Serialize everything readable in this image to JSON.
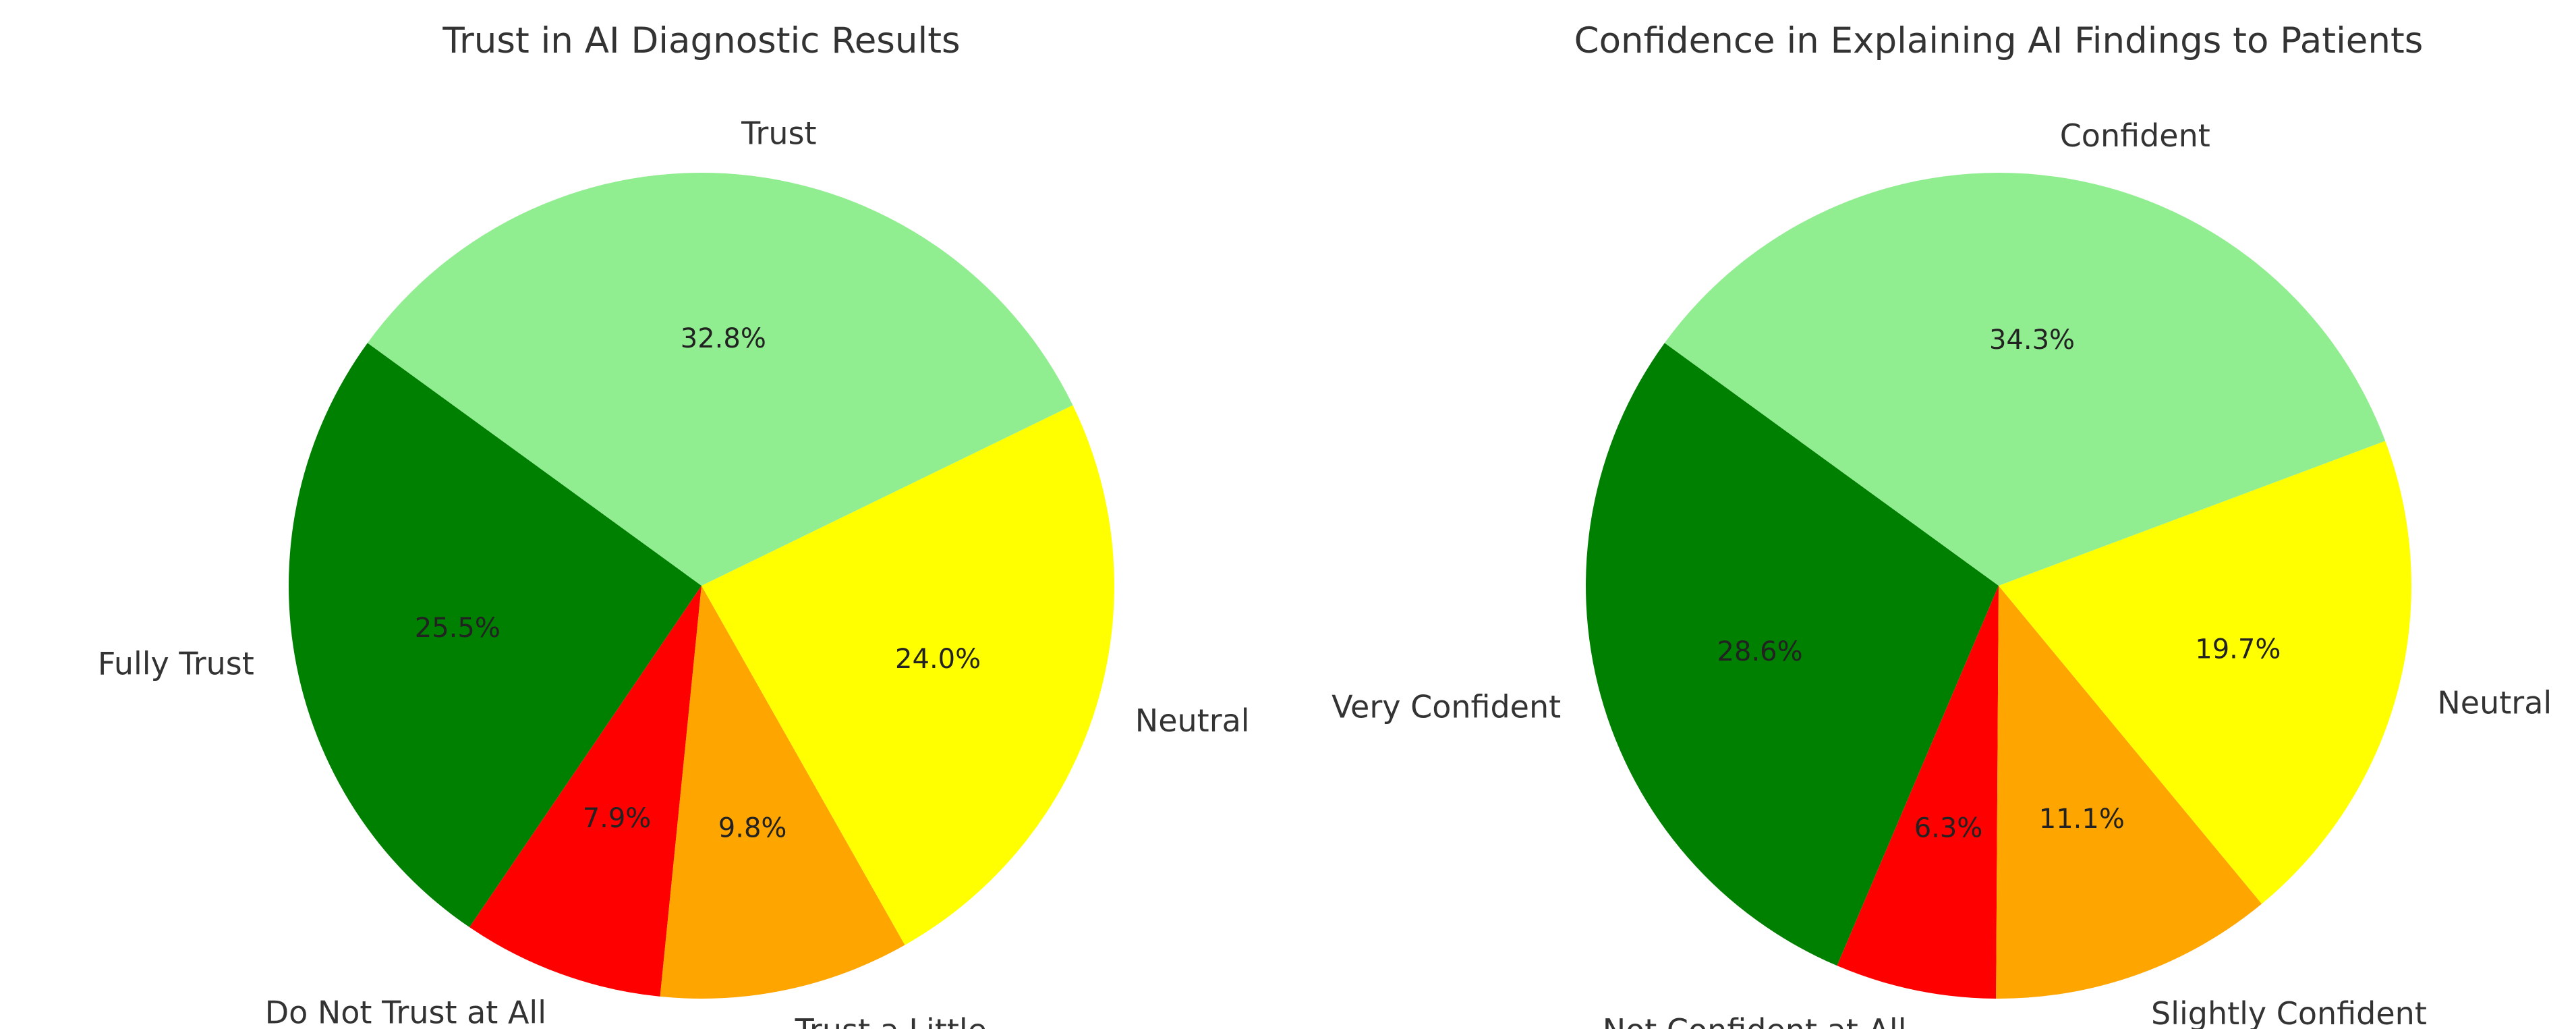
{
  "chart_data": [
    {
      "type": "pie",
      "title": "Trust in AI Diagnostic Results",
      "start_angle_deg": 144,
      "direction": "counterclockwise",
      "slices": [
        {
          "label": "Fully Trust",
          "value": 25.5,
          "pct_label": "25.5%",
          "color": "#008000"
        },
        {
          "label": "Do Not Trust at All",
          "value": 7.9,
          "pct_label": "7.9%",
          "color": "#ff0000"
        },
        {
          "label": "Trust a Little",
          "value": 9.8,
          "pct_label": "9.8%",
          "color": "#ffa500"
        },
        {
          "label": "Neutral",
          "value": 24.0,
          "pct_label": "24.0%",
          "color": "#ffff00"
        },
        {
          "label": "Trust",
          "value": 32.8,
          "pct_label": "32.8%",
          "color": "#90ee90"
        }
      ]
    },
    {
      "type": "pie",
      "title": "Confidence in Explaining AI Findings to Patients",
      "start_angle_deg": 144,
      "direction": "counterclockwise",
      "slices": [
        {
          "label": "Very Confident",
          "value": 28.6,
          "pct_label": "28.6%",
          "color": "#008000"
        },
        {
          "label": "Not Confident at All",
          "value": 6.3,
          "pct_label": "6.3%",
          "color": "#ff0000"
        },
        {
          "label": "Slightly Confident",
          "value": 11.1,
          "pct_label": "11.1%",
          "color": "#ffa500"
        },
        {
          "label": "Neutral",
          "value": 19.7,
          "pct_label": "19.7%",
          "color": "#ffff00"
        },
        {
          "label": "Confident",
          "value": 34.3,
          "pct_label": "34.3%",
          "color": "#90ee90"
        }
      ]
    }
  ]
}
